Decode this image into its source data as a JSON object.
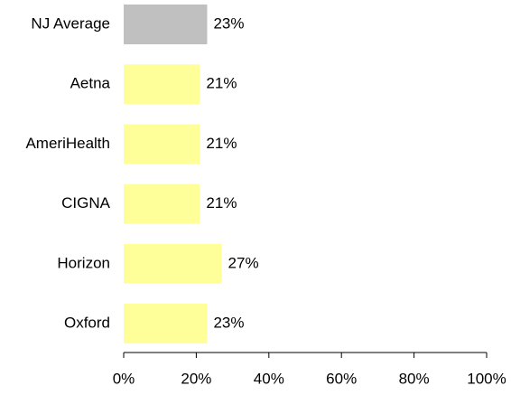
{
  "chart_data": {
    "type": "bar",
    "orientation": "horizontal",
    "categories": [
      "NJ Average",
      "Aetna",
      "AmeriHealth",
      "CIGNA",
      "Horizon",
      "Oxford"
    ],
    "values": [
      23,
      21,
      21,
      21,
      27,
      23
    ],
    "value_labels": [
      "23%",
      "21%",
      "21%",
      "21%",
      "27%",
      "23%"
    ],
    "colors": [
      "#c0c0c0",
      "#ffff99",
      "#ffff99",
      "#ffff99",
      "#ffff99",
      "#ffff99"
    ],
    "xlim": [
      0,
      100
    ],
    "xticks": [
      {
        "value": 0,
        "label": "0%"
      },
      {
        "value": 20,
        "label": "20%"
      },
      {
        "value": 40,
        "label": "40%"
      },
      {
        "value": 60,
        "label": "60%"
      },
      {
        "value": 80,
        "label": "80%"
      },
      {
        "value": 100,
        "label": "100%"
      }
    ]
  }
}
